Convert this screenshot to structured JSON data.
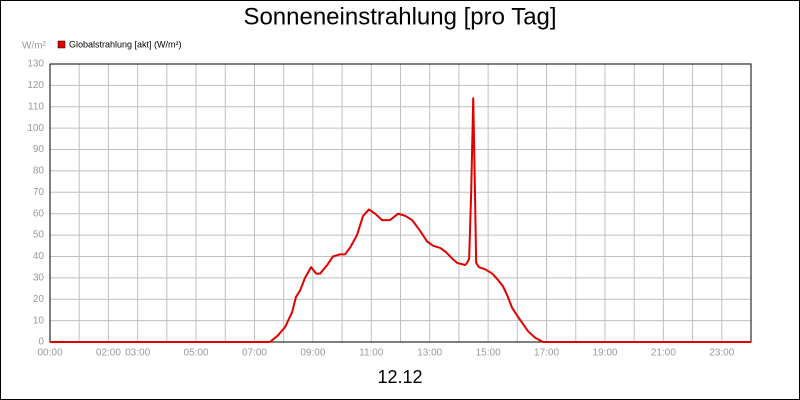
{
  "chart_data": {
    "type": "line",
    "title": "Sonneneinstrahlung [pro Tag]",
    "y_unit": "W/m²",
    "x_label": "12.12",
    "xlim": [
      0,
      24
    ],
    "ylim": [
      0,
      130
    ],
    "yticks": [
      0,
      10,
      20,
      30,
      40,
      50,
      60,
      70,
      80,
      90,
      100,
      110,
      120,
      130
    ],
    "xticks": [
      {
        "value": 0,
        "label": "00:00"
      },
      {
        "value": 1,
        "label": null
      },
      {
        "value": 2,
        "label": "02:00"
      },
      {
        "value": 3,
        "label": "03:00"
      },
      {
        "value": 4,
        "label": null
      },
      {
        "value": 5,
        "label": "05:00"
      },
      {
        "value": 6,
        "label": null
      },
      {
        "value": 7,
        "label": "07:00"
      },
      {
        "value": 8,
        "label": null
      },
      {
        "value": 9,
        "label": "09:00"
      },
      {
        "value": 10,
        "label": null
      },
      {
        "value": 11,
        "label": "11:00"
      },
      {
        "value": 12,
        "label": null
      },
      {
        "value": 13,
        "label": "13:00"
      },
      {
        "value": 14,
        "label": null
      },
      {
        "value": 15,
        "label": "15:00"
      },
      {
        "value": 16,
        "label": null
      },
      {
        "value": 17,
        "label": "17:00"
      },
      {
        "value": 18,
        "label": null
      },
      {
        "value": 19,
        "label": "19:00"
      },
      {
        "value": 20,
        "label": null
      },
      {
        "value": 21,
        "label": "21:00"
      },
      {
        "value": 22,
        "label": null
      },
      {
        "value": 23,
        "label": "23:00"
      },
      {
        "value": 24,
        "label": null
      }
    ],
    "grid": true,
    "series": [
      {
        "name": "Globalstrahlung [akt] (W/m²)",
        "color": "#e00000",
        "x": [
          0,
          7.53,
          7.8,
          8.05,
          8.29,
          8.42,
          8.56,
          8.73,
          8.94,
          9.11,
          9.25,
          9.49,
          9.69,
          9.93,
          10.1,
          10.27,
          10.51,
          10.72,
          10.92,
          11.13,
          11.37,
          11.64,
          11.92,
          12.16,
          12.4,
          12.67,
          12.91,
          13.12,
          13.36,
          13.56,
          13.77,
          13.94,
          14.21,
          14.28,
          14.35,
          14.42,
          14.49,
          14.55,
          14.59,
          14.69,
          14.9,
          15.14,
          15.34,
          15.51,
          15.65,
          15.82,
          16.06,
          16.37,
          16.61,
          16.88,
          24
        ],
        "values": [
          0,
          0,
          3,
          7,
          14,
          21,
          24,
          30,
          35,
          32,
          32,
          36,
          40,
          41,
          41,
          44,
          50,
          59,
          62,
          60,
          57,
          57,
          60,
          59,
          57,
          52,
          47,
          45,
          44,
          42,
          39,
          37,
          36,
          37,
          39,
          70,
          114,
          70,
          37,
          35,
          34,
          32,
          29,
          26,
          22,
          16,
          11,
          5,
          2,
          0,
          0
        ]
      }
    ]
  }
}
